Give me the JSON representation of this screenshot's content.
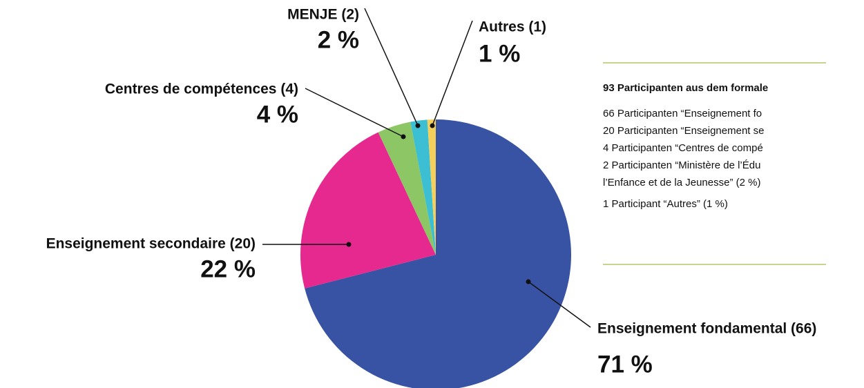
{
  "chart_data": {
    "type": "pie",
    "categories": [
      "Enseignement fondamental (66)",
      "Enseignement secondaire (20)",
      "Centres de compétences (4)",
      "MENJE (2)",
      "Autres (1)"
    ],
    "values": [
      71,
      22,
      4,
      2,
      1
    ],
    "value_labels": [
      "71 %",
      "22 %",
      "4 %",
      "2 %",
      "1 %"
    ],
    "colors": [
      "#3852a4",
      "#e5298e",
      "#8dc665",
      "#3cbfd3",
      "#f5cf5b"
    ]
  },
  "panel": {
    "title": "93 Participanten aus dem formale",
    "lines": [
      "66 Participanten “Enseignement fo",
      "20 Participanten “Enseignement se",
      "4 Participanten “Centres de compé",
      "2 Participanten “Ministère de l’Édu",
      "l’Enfance et de la Jeunesse” (2 %)",
      "1 Participant “Autres” (1 %)"
    ]
  }
}
